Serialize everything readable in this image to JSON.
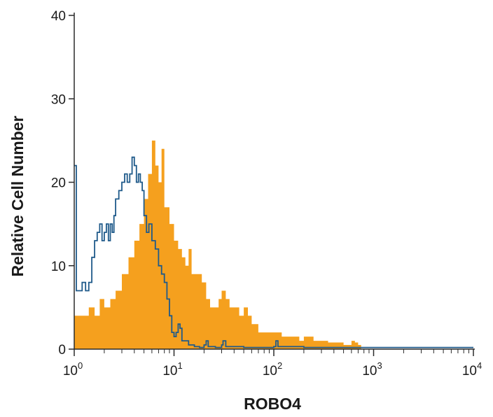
{
  "chart_data": {
    "type": "histogram",
    "title": "",
    "xlabel": "ROBO4",
    "ylabel": "Relative Cell Number",
    "xscale": "log",
    "xlim": [
      1,
      10000
    ],
    "ylim": [
      0,
      40
    ],
    "grid": false,
    "legend": "none",
    "x_ticks": [
      {
        "base": "10",
        "exp": "0"
      },
      {
        "base": "10",
        "exp": "1"
      },
      {
        "base": "10",
        "exp": "2"
      },
      {
        "base": "10",
        "exp": "3"
      },
      {
        "base": "10",
        "exp": "4"
      }
    ],
    "y_ticks": [
      "0",
      "10",
      "20",
      "30",
      "40"
    ],
    "series": [
      {
        "style": "filled",
        "color": "#f5a01e",
        "points": [
          [
            1.0,
            4
          ],
          [
            1.2,
            4
          ],
          [
            1.4,
            5
          ],
          [
            1.6,
            4
          ],
          [
            1.8,
            6
          ],
          [
            2.0,
            5
          ],
          [
            2.3,
            6
          ],
          [
            2.6,
            7
          ],
          [
            3.0,
            9
          ],
          [
            3.5,
            11
          ],
          [
            4.0,
            13
          ],
          [
            4.5,
            15
          ],
          [
            5.0,
            18
          ],
          [
            5.5,
            21
          ],
          [
            6.0,
            25
          ],
          [
            6.5,
            22
          ],
          [
            7.0,
            20
          ],
          [
            7.5,
            24
          ],
          [
            8.0,
            17
          ],
          [
            9.0,
            15
          ],
          [
            10.0,
            13
          ],
          [
            11,
            12
          ],
          [
            12,
            11
          ],
          [
            13,
            10
          ],
          [
            14,
            12
          ],
          [
            15,
            9
          ],
          [
            17,
            9
          ],
          [
            19,
            8
          ],
          [
            21,
            6
          ],
          [
            23,
            5
          ],
          [
            25,
            5
          ],
          [
            28,
            6
          ],
          [
            30,
            7
          ],
          [
            33,
            6
          ],
          [
            36,
            5
          ],
          [
            40,
            5
          ],
          [
            45,
            4
          ],
          [
            50,
            5
          ],
          [
            55,
            4
          ],
          [
            60,
            3
          ],
          [
            70,
            2
          ],
          [
            80,
            2
          ],
          [
            90,
            2
          ],
          [
            100,
            2
          ],
          [
            120,
            1.5
          ],
          [
            150,
            1.5
          ],
          [
            180,
            1
          ],
          [
            200,
            1.5
          ],
          [
            250,
            1
          ],
          [
            300,
            1
          ],
          [
            350,
            0.8
          ],
          [
            400,
            0.8
          ],
          [
            500,
            0.5
          ],
          [
            600,
            1
          ],
          [
            650,
            0.8
          ],
          [
            700,
            0.5
          ],
          [
            750,
            0
          ]
        ]
      },
      {
        "style": "outline",
        "color": "#1f5a8a",
        "points": [
          [
            1.0,
            22
          ],
          [
            1.05,
            7
          ],
          [
            1.2,
            8
          ],
          [
            1.3,
            7
          ],
          [
            1.4,
            8
          ],
          [
            1.5,
            11
          ],
          [
            1.6,
            13
          ],
          [
            1.7,
            14
          ],
          [
            1.8,
            15
          ],
          [
            1.9,
            13
          ],
          [
            2.0,
            14
          ],
          [
            2.1,
            15
          ],
          [
            2.2,
            13
          ],
          [
            2.3,
            15
          ],
          [
            2.4,
            14
          ],
          [
            2.5,
            16
          ],
          [
            2.6,
            18
          ],
          [
            2.8,
            19
          ],
          [
            3.0,
            20
          ],
          [
            3.2,
            21
          ],
          [
            3.4,
            20
          ],
          [
            3.6,
            21
          ],
          [
            3.8,
            23
          ],
          [
            4.0,
            22
          ],
          [
            4.2,
            20
          ],
          [
            4.4,
            21
          ],
          [
            4.6,
            20
          ],
          [
            4.8,
            19
          ],
          [
            5.0,
            16
          ],
          [
            5.3,
            14
          ],
          [
            5.6,
            15
          ],
          [
            6.0,
            13
          ],
          [
            6.5,
            12
          ],
          [
            7.0,
            10
          ],
          [
            7.5,
            9
          ],
          [
            8.0,
            8
          ],
          [
            8.5,
            6
          ],
          [
            9.0,
            4
          ],
          [
            9.5,
            2
          ],
          [
            10.0,
            1.5
          ],
          [
            10.5,
            2
          ],
          [
            11,
            3
          ],
          [
            11.5,
            2.5
          ],
          [
            12,
            1
          ],
          [
            14,
            0.5
          ],
          [
            16,
            0.3
          ],
          [
            18,
            0.2
          ],
          [
            20,
            0.5
          ],
          [
            21,
            1
          ],
          [
            22,
            0.3
          ],
          [
            26,
            0.2
          ],
          [
            30,
            0.5
          ],
          [
            31,
            1
          ],
          [
            33,
            0.3
          ],
          [
            50,
            0.2
          ],
          [
            100,
            0.3
          ],
          [
            105,
            1
          ],
          [
            110,
            0.3
          ],
          [
            200,
            0.2
          ],
          [
            1000,
            0.2
          ],
          [
            10000,
            0.2
          ]
        ]
      }
    ]
  }
}
